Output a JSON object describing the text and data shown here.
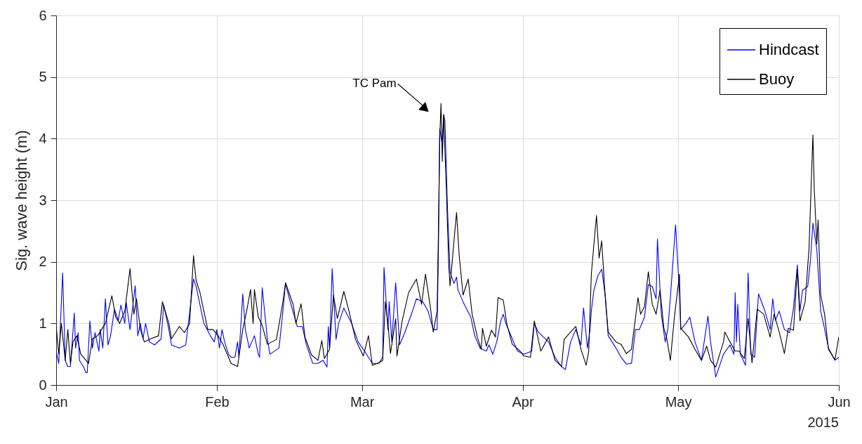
{
  "chart_data": {
    "type": "line",
    "ylabel": "Sig. wave height (m)",
    "ylim": [
      0,
      6
    ],
    "yticks": [
      0,
      1,
      2,
      3,
      4,
      5,
      6
    ],
    "xlim": [
      "2015-01-01",
      "2015-06-01"
    ],
    "xticks": [
      {
        "value": "2015-01-01",
        "label": "Jan"
      },
      {
        "value": "2015-02-01",
        "label": "Feb"
      },
      {
        "value": "2015-03-01",
        "label": "Mar"
      },
      {
        "value": "2015-04-01",
        "label": "Apr"
      },
      {
        "value": "2015-05-01",
        "label": "May"
      },
      {
        "value": "2015-06-01",
        "label": "Jun"
      }
    ],
    "grid": true,
    "legend": "top right",
    "line_style": "solid",
    "annotations": [
      {
        "text": "TC Pam",
        "x": "2015-03-13T00:00",
        "y": 4.5
      },
      "2015"
    ],
    "series": [
      {
        "name": "Hindcast",
        "color": "#0000ff",
        "x": [
          "2015-01-01T00:00",
          "2015-01-01T12:00",
          "2015-01-02T06:00",
          "2015-01-02T18:00",
          "2015-01-03T06:00",
          "2015-01-03T18:00",
          "2015-01-04T12:00",
          "2015-01-04T18:00",
          "2015-01-05T06:00",
          "2015-01-05T12:00",
          "2015-01-06T06:00",
          "2015-01-06T18:00",
          "2015-01-07T00:00",
          "2015-01-07T12:00",
          "2015-01-08T00:00",
          "2015-01-08T12:00",
          "2015-01-09T06:00",
          "2015-01-09T12:00",
          "2015-01-10T00:00",
          "2015-01-10T12:00",
          "2015-01-11T00:00",
          "2015-01-11T12:00",
          "2015-01-12T06:00",
          "2015-01-13T00:00",
          "2015-01-13T12:00",
          "2015-01-14T06:00",
          "2015-01-14T12:00",
          "2015-01-15T06:00",
          "2015-01-16T06:00",
          "2015-01-16T18:00",
          "2015-01-17T06:00",
          "2015-01-17T18:00",
          "2015-01-18T06:00",
          "2015-01-19T00:00",
          "2015-01-20T00:00",
          "2015-01-21T06:00",
          "2015-01-21T18:00",
          "2015-01-22T18:00",
          "2015-01-23T06:00",
          "2015-01-24T18:00",
          "2015-01-26T00:00",
          "2015-01-26T12:00",
          "2015-01-27T12:00",
          "2015-01-28T00:00",
          "2015-01-29T12:00",
          "2015-01-30T18:00",
          "2015-01-31T12:00",
          "2015-02-01T00:00",
          "2015-02-01T12:00",
          "2015-02-02T00:00",
          "2015-02-02T12:00",
          "2015-02-03T06:00",
          "2015-02-03T18:00",
          "2015-02-04T12:00",
          "2015-02-05T00:00",
          "2015-02-05T06:00",
          "2015-02-06T00:00",
          "2015-02-06T12:00",
          "2015-02-07T06:00",
          "2015-02-08T06:00",
          "2015-02-09T00:00",
          "2015-02-09T06:00",
          "2015-02-09T18:00",
          "2015-02-10T18:00",
          "2015-02-11T06:00",
          "2015-02-13T00:00",
          "2015-02-13T18:00",
          "2015-02-14T06:00",
          "2015-02-15T00:00",
          "2015-02-16T12:00",
          "2015-02-17T12:00",
          "2015-02-18T06:00",
          "2015-02-19T12:00",
          "2015-02-20T12:00",
          "2015-02-21T12:00",
          "2015-02-22T06:00",
          "2015-02-22T12:00",
          "2015-02-22T18:00",
          "2015-02-23T06:00",
          "2015-02-24T00:00",
          "2015-02-24T12:00",
          "2015-02-25T12:00",
          "2015-02-27T00:00",
          "2015-02-28T06:00",
          "2015-03-01T12:00",
          "2015-03-03T00:00",
          "2015-03-04T06:00",
          "2015-03-05T00:00",
          "2015-03-05T06:00",
          "2015-03-06T00:00",
          "2015-03-06T06:00",
          "2015-03-06T18:00",
          "2015-03-07T12:00",
          "2015-03-08T00:00",
          "2015-03-08T06:00",
          "2015-03-09T06:00",
          "2015-03-10T18:00",
          "2015-03-11T12:00",
          "2015-03-12T18:00",
          "2015-03-13T18:00",
          "2015-03-14T18:00",
          "2015-03-15T12:00",
          "2015-03-15T18:00",
          "2015-03-16T00:00",
          "2015-03-16T12:00",
          "2015-03-16T18:00",
          "2015-03-17T00:00",
          "2015-03-17T12:00",
          "2015-03-18T00:00",
          "2015-03-18T18:00",
          "2015-03-19T06:00",
          "2015-03-19T12:00",
          "2015-03-20T12:00",
          "2015-03-22T00:00",
          "2015-03-22T18:00",
          "2015-03-23T18:00",
          "2015-03-25T00:00",
          "2015-03-25T12:00",
          "2015-03-26T06:00",
          "2015-03-27T00:00",
          "2015-03-27T18:00",
          "2015-03-28T06:00",
          "2015-03-28T18:00",
          "2015-03-29T12:00",
          "2015-03-31T00:00",
          "2015-04-01T06:00",
          "2015-04-02T18:00",
          "2015-04-03T06:00",
          "2015-04-04T00:00",
          "2015-04-06T00:00",
          "2015-04-07T06:00",
          "2015-04-08T12:00",
          "2015-04-09T06:00",
          "2015-04-10T06:00",
          "2015-04-11T06:00",
          "2015-04-12T06:00",
          "2015-04-12T18:00",
          "2015-04-13T12:00",
          "2015-04-14T00:00",
          "2015-04-14T06:00",
          "2015-04-14T18:00",
          "2015-04-15T12:00",
          "2015-04-16T06:00",
          "2015-04-17T00:00",
          "2015-04-17T12:00",
          "2015-04-19T00:00",
          "2015-04-20T00:00",
          "2015-04-21T00:00",
          "2015-04-22T00:00",
          "2015-04-22T18:00",
          "2015-04-23T12:00",
          "2015-04-24T12:00",
          "2015-04-25T06:00",
          "2015-04-26T00:00",
          "2015-04-26T18:00",
          "2015-04-27T00:00",
          "2015-04-27T18:00",
          "2015-04-28T12:00",
          "2015-04-29T00:00",
          "2015-04-29T12:00",
          "2015-04-30T12:00",
          "2015-05-01T06:00",
          "2015-05-01T12:00",
          "2015-05-02T12:00",
          "2015-05-03T06:00",
          "2015-05-04T06:00",
          "2015-05-05T12:00",
          "2015-05-06T18:00",
          "2015-05-07T06:00",
          "2015-05-08T06:00",
          "2015-05-09T18:00",
          "2015-05-11T00:00",
          "2015-05-11T18:00",
          "2015-05-12T00:00",
          "2015-05-12T06:00",
          "2015-05-12T12:00",
          "2015-05-13T00:00",
          "2015-05-14T00:00",
          "2015-05-14T12:00",
          "2015-05-15T00:00",
          "2015-05-15T18:00",
          "2015-05-16T12:00",
          "2015-05-17T18:00",
          "2015-05-18T18:00",
          "2015-05-19T06:00",
          "2015-05-19T18:00",
          "2015-05-20T12:00",
          "2015-05-21T12:00",
          "2015-05-22T12:00",
          "2015-05-23T06:00",
          "2015-05-24T00:00",
          "2015-05-24T12:00",
          "2015-05-25T00:00",
          "2015-05-26T00:00",
          "2015-05-26T12:00",
          "2015-05-27T00:00",
          "2015-05-27T18:00",
          "2015-05-28T12:00",
          "2015-05-29T06:00",
          "2015-05-30T00:00",
          "2015-05-31T06:00",
          "2015-06-01T00:00"
        ],
        "values": [
          0.55,
          0.35,
          1.82,
          0.4,
          0.3,
          0.3,
          1.17,
          0.6,
          0.85,
          0.4,
          0.3,
          0.2,
          0.2,
          1.04,
          0.6,
          0.85,
          0.55,
          0.9,
          0.6,
          1.4,
          0.65,
          0.8,
          1.23,
          1.05,
          1.3,
          1.0,
          1.35,
          0.9,
          1.61,
          0.8,
          1.0,
          0.75,
          1.0,
          0.7,
          0.65,
          0.75,
          1.3,
          0.9,
          0.65,
          0.6,
          0.65,
          1.0,
          1.72,
          1.6,
          1.0,
          0.8,
          0.7,
          0.9,
          0.6,
          0.9,
          0.7,
          0.5,
          0.45,
          0.45,
          0.7,
          0.45,
          1.48,
          0.9,
          0.6,
          0.8,
          0.5,
          0.45,
          1.58,
          0.75,
          0.5,
          0.6,
          1.2,
          1.65,
          1.4,
          0.95,
          0.95,
          0.66,
          0.35,
          0.35,
          0.4,
          0.29,
          0.95,
          0.6,
          1.89,
          0.74,
          1.0,
          1.25,
          1.0,
          0.7,
          0.55,
          0.35,
          0.35,
          0.45,
          1.91,
          0.9,
          1.35,
          0.7,
          1.66,
          1.0,
          0.65,
          0.85,
          1.2,
          1.4,
          1.35,
          1.2,
          0.9,
          0.9,
          2.18,
          4.16,
          3.9,
          4.39,
          4.3,
          2.86,
          1.83,
          1.65,
          1.75,
          1.55,
          1.35,
          1.1,
          0.8,
          0.6,
          0.55,
          0.65,
          0.5,
          0.7,
          1.03,
          1.15,
          1.0,
          0.85,
          0.55,
          0.5,
          0.55,
          1.0,
          0.86,
          0.7,
          0.45,
          0.3,
          0.25,
          0.7,
          0.9,
          0.65,
          1.25,
          0.6,
          0.9,
          1.2,
          1.54,
          1.77,
          1.88,
          1.4,
          0.8,
          0.6,
          0.45,
          0.34,
          0.35,
          0.9,
          0.9,
          1.1,
          1.63,
          1.6,
          1.4,
          2.37,
          1.15,
          0.7,
          0.9,
          1.42,
          2.6,
          1.5,
          0.9,
          1.0,
          1.1,
          0.7,
          0.4,
          1.12,
          0.7,
          0.13,
          0.5,
          0.65,
          0.5,
          1.5,
          0.7,
          1.31,
          0.5,
          0.32,
          1.82,
          0.5,
          0.45,
          1.48,
          1.2,
          0.9,
          1.4,
          1.05,
          1.2,
          0.9,
          0.85,
          1.25,
          1.95,
          1.2,
          1.54,
          1.6,
          2.0,
          2.63,
          2.2,
          1.2,
          0.91,
          0.6,
          0.4,
          0.45
        ]
      },
      {
        "name": "Buoy",
        "color": "#000000",
        "x": [
          "2015-01-01T00:00",
          "2015-01-01T12:00",
          "2015-01-02T00:00",
          "2015-01-02T18:00",
          "2015-01-03T06:00",
          "2015-01-03T18:00",
          "2015-01-04T06:00",
          "2015-01-05T00:00",
          "2015-01-05T18:00",
          "2015-01-06T18:00",
          "2015-01-07T06:00",
          "2015-01-08T00:00",
          "2015-01-09T00:00",
          "2015-01-10T12:00",
          "2015-01-11T18:00",
          "2015-01-12T12:00",
          "2015-01-13T06:00",
          "2015-01-14T06:00",
          "2015-01-15T06:00",
          "2015-01-16T00:00",
          "2015-01-16T12:00",
          "2015-01-17T06:00",
          "2015-01-18T00:00",
          "2015-01-19T06:00",
          "2015-01-20T18:00",
          "2015-01-21T12:00",
          "2015-01-22T18:00",
          "2015-01-23T06:00",
          "2015-01-24T18:00",
          "2015-01-25T18:00",
          "2015-01-26T18:00",
          "2015-01-27T12:00",
          "2015-01-28T00:00",
          "2015-01-28T18:00",
          "2015-01-29T12:00",
          "2015-01-30T06:00",
          "2015-01-31T06:00",
          "2015-02-01T06:00",
          "2015-02-02T06:00",
          "2015-02-03T06:00",
          "2015-02-03T18:00",
          "2015-02-05T00:00",
          "2015-02-06T00:00",
          "2015-02-06T18:00",
          "2015-02-07T12:00",
          "2015-02-08T00:00",
          "2015-02-08T06:00",
          "2015-02-09T00:00",
          "2015-02-09T18:00",
          "2015-02-10T18:00",
          "2015-02-12T12:00",
          "2015-02-13T18:00",
          "2015-02-14T06:00",
          "2015-02-15T18:00",
          "2015-02-16T06:00",
          "2015-02-17T06:00",
          "2015-02-18T00:00",
          "2015-02-19T06:00",
          "2015-02-20T12:00",
          "2015-02-21T06:00",
          "2015-02-21T18:00",
          "2015-02-22T18:00",
          "2015-02-23T12:00",
          "2015-02-24T06:00",
          "2015-02-25T12:00",
          "2015-02-26T12:00",
          "2015-02-27T18:00",
          "2015-03-01T06:00",
          "2015-03-02T06:00",
          "2015-03-03T00:00",
          "2015-03-04T06:00",
          "2015-03-05T00:00",
          "2015-03-05T12:00",
          "2015-03-06T00:00",
          "2015-03-06T12:00",
          "2015-03-07T12:00",
          "2015-03-07T18:00",
          "2015-03-08T18:00",
          "2015-03-10T00:00",
          "2015-03-11T12:00",
          "2015-03-12T12:00",
          "2015-03-13T06:00",
          "2015-03-14T06:00",
          "2015-03-14T18:00",
          "2015-03-15T12:00",
          "2015-03-15T18:00",
          "2015-03-16T00:00",
          "2015-03-16T06:00",
          "2015-03-16T12:00",
          "2015-03-16T18:00",
          "2015-03-17T06:00",
          "2015-03-17T18:00",
          "2015-03-18T00:00",
          "2015-03-18T18:00",
          "2015-03-19T06:00",
          "2015-03-19T18:00",
          "2015-03-20T12:00",
          "2015-03-21T12:00",
          "2015-03-22T06:00",
          "2015-03-23T06:00",
          "2015-03-24T00:00",
          "2015-03-24T06:00",
          "2015-03-25T00:00",
          "2015-03-26T00:00",
          "2015-03-26T18:00",
          "2015-03-27T06:00",
          "2015-03-28T06:00",
          "2015-03-29T00:00",
          "2015-03-30T00:00",
          "2015-03-31T12:00",
          "2015-04-01T06:00",
          "2015-04-02T12:00",
          "2015-04-03T06:00",
          "2015-04-04T12:00",
          "2015-04-06T00:00",
          "2015-04-07T06:00",
          "2015-04-08T12:00",
          "2015-04-09T00:00",
          "2015-04-10T06:00",
          "2015-04-11T06:00",
          "2015-04-12T06:00",
          "2015-04-13T06:00",
          "2015-04-13T18:00",
          "2015-04-14T06:00",
          "2015-04-14T18:00",
          "2015-04-15T06:00",
          "2015-04-15T18:00",
          "2015-04-16T06:00",
          "2015-04-17T00:00",
          "2015-04-17T12:00",
          "2015-04-19T00:00",
          "2015-04-20T00:00",
          "2015-04-21T00:00",
          "2015-04-22T00:00",
          "2015-04-22T18:00",
          "2015-04-23T06:00",
          "2015-04-23T18:00",
          "2015-04-24T12:00",
          "2015-04-25T06:00",
          "2015-04-26T00:00",
          "2015-04-26T18:00",
          "2015-04-27T12:00",
          "2015-04-28T06:00",
          "2015-04-28T18:00",
          "2015-04-29T12:00",
          "2015-04-30T06:00",
          "2015-05-01T06:00",
          "2015-05-01T12:00",
          "2015-05-03T00:00",
          "2015-05-04T06:00",
          "2015-05-05T12:00",
          "2015-05-06T12:00",
          "2015-05-07T06:00",
          "2015-05-08T06:00",
          "2015-05-09T18:00",
          "2015-05-10T00:00",
          "2015-05-11T00:00",
          "2015-05-12T00:00",
          "2015-05-12T18:00",
          "2015-05-13T18:00",
          "2015-05-14T12:00",
          "2015-05-15T06:00",
          "2015-05-16T06:00",
          "2015-05-17T12:00",
          "2015-05-18T18:00",
          "2015-05-19T12:00",
          "2015-05-20T12:00",
          "2015-05-21T12:00",
          "2015-05-22T06:00",
          "2015-05-23T06:00",
          "2015-05-24T00:00",
          "2015-05-24T12:00",
          "2015-05-25T12:00",
          "2015-05-26T06:00",
          "2015-05-27T00:00",
          "2015-05-27T06:00",
          "2015-05-27T18:00",
          "2015-05-28T00:00",
          "2015-05-28T12:00",
          "2015-05-29T06:00",
          "2015-05-30T00:00",
          "2015-05-31T06:00",
          "2015-06-01T00:00"
        ],
        "values": [
          0.95,
          0.5,
          1.0,
          0.4,
          0.9,
          0.35,
          0.7,
          0.8,
          0.5,
          0.4,
          0.35,
          0.75,
          0.8,
          1.0,
          1.45,
          1.1,
          1.0,
          1.2,
          1.89,
          1.15,
          1.4,
          0.9,
          0.7,
          0.75,
          0.8,
          1.35,
          1.0,
          0.75,
          0.95,
          0.85,
          1.0,
          2.1,
          1.7,
          1.5,
          1.2,
          0.9,
          0.9,
          0.8,
          0.65,
          0.45,
          0.35,
          0.3,
          0.9,
          1.2,
          1.55,
          1.0,
          1.55,
          1.1,
          0.97,
          0.66,
          0.74,
          1.35,
          1.66,
          1.3,
          1.0,
          1.32,
          0.78,
          0.49,
          0.4,
          0.72,
          0.43,
          0.58,
          1.46,
          1.08,
          1.52,
          1.2,
          0.74,
          0.47,
          0.8,
          0.32,
          0.36,
          0.4,
          1.35,
          1.0,
          0.51,
          1.08,
          0.47,
          1.04,
          1.5,
          1.72,
          1.31,
          1.8,
          1.23,
          0.86,
          1.2,
          2.49,
          4.0,
          4.57,
          3.63,
          4.39,
          3.25,
          1.92,
          1.61,
          2.34,
          2.8,
          2.11,
          1.46,
          1.72,
          1.15,
          0.78,
          0.58,
          0.92,
          0.63,
          0.89,
          0.78,
          1.42,
          1.38,
          0.97,
          0.66,
          0.55,
          0.47,
          0.45,
          1.04,
          0.55,
          0.78,
          0.4,
          0.3,
          0.74,
          0.86,
          0.95,
          0.58,
          0.32,
          0.55,
          1.8,
          2.29,
          2.75,
          2.06,
          2.34,
          1.35,
          0.86,
          0.7,
          0.66,
          0.51,
          0.58,
          1.08,
          1.42,
          1.15,
          1.27,
          1.84,
          1.31,
          1.15,
          1.54,
          0.92,
          0.78,
          0.4,
          1.08,
          1.8,
          0.92,
          0.78,
          0.58,
          0.4,
          0.63,
          0.4,
          0.29,
          0.7,
          0.86,
          0.7,
          0.55,
          0.55,
          0.43,
          1.08,
          0.36,
          1.23,
          1.15,
          0.78,
          1.15,
          0.86,
          0.51,
          0.92,
          0.89,
          1.88,
          1.04,
          1.35,
          2.22,
          4.06,
          3.2,
          2.29,
          2.68,
          1.46,
          1.15,
          0.58,
          0.41,
          0.78
        ]
      }
    ]
  }
}
